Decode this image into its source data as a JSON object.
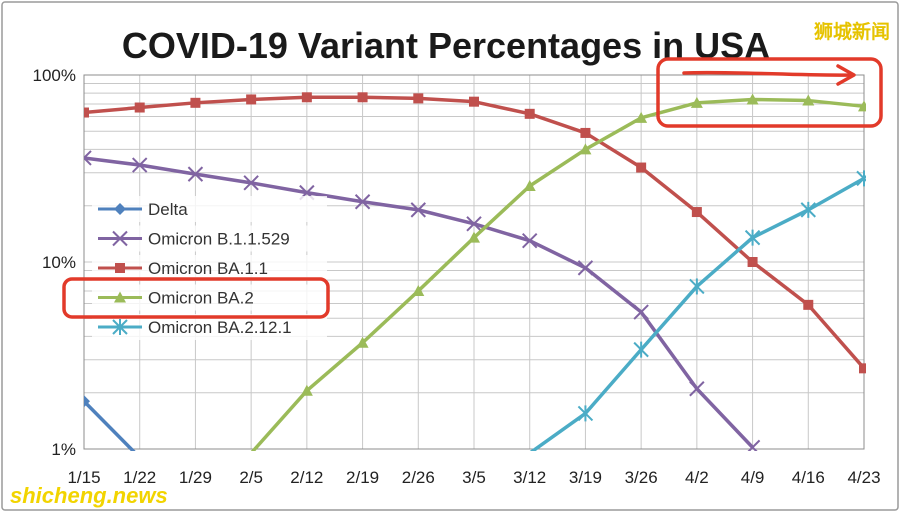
{
  "watermarks": {
    "top_right": "狮城新闻",
    "bottom_left": "shicheng.news"
  },
  "colors": {
    "highlight": "#e23a2a",
    "grid": "#c8c8c8",
    "frame": "#9a9a9a"
  },
  "chart_data": {
    "type": "line",
    "title": "COVID-19 Variant Percentages in USA",
    "xlabel": "",
    "ylabel": "",
    "yscale": "log",
    "ylim": [
      1,
      100
    ],
    "ytick_labels": [
      "100%",
      "10%",
      "1%"
    ],
    "ytick_values": [
      100,
      10,
      1
    ],
    "categories": [
      "1/15",
      "1/22",
      "1/29",
      "2/5",
      "2/12",
      "2/19",
      "2/26",
      "3/5",
      "3/12",
      "3/19",
      "3/26",
      "4/2",
      "4/9",
      "4/16",
      "4/23"
    ],
    "legend_position": "left",
    "series": [
      {
        "name": "Delta",
        "color": "#4f81bd",
        "marker": "diamond",
        "values": [
          1.8,
          0.9,
          null,
          null,
          null,
          null,
          null,
          null,
          null,
          null,
          null,
          null,
          null,
          null,
          null
        ]
      },
      {
        "name": "Omicron B.1.1.529",
        "color": "#8064a2",
        "marker": "x",
        "values": [
          36,
          33,
          29.5,
          26.5,
          23.5,
          21,
          19,
          16,
          13,
          9.3,
          5.4,
          2.1,
          1.02,
          null,
          null
        ]
      },
      {
        "name": "Omicron BA.1.1",
        "color": "#c0504d",
        "marker": "square",
        "values": [
          63,
          67,
          71,
          74,
          76,
          76,
          75,
          72,
          62,
          49,
          32,
          18.5,
          10,
          5.9,
          2.7
        ]
      },
      {
        "name": "Omicron BA.2",
        "color": "#9bbb59",
        "marker": "triangle",
        "values": [
          null,
          null,
          null,
          0.95,
          2.05,
          3.7,
          7,
          13.5,
          25.5,
          40,
          59,
          71,
          74,
          73,
          68
        ]
      },
      {
        "name": "Omicron BA.2.12.1",
        "color": "#4bacc6",
        "marker": "star",
        "values": [
          null,
          null,
          null,
          null,
          null,
          null,
          null,
          null,
          0.95,
          1.55,
          3.4,
          7.4,
          13.5,
          19,
          28
        ]
      }
    ]
  }
}
